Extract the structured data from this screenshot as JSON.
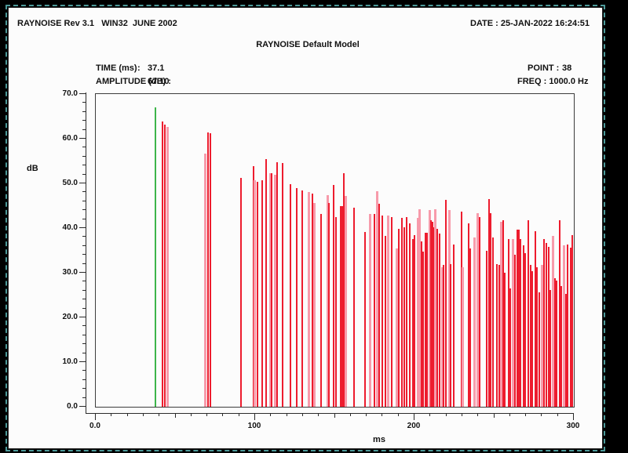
{
  "window": {
    "header_left": "RAYNOISE Rev 3.1   WIN32  JUNE 2002",
    "header_right": "DATE : 25-JAN-2022 16:24:51"
  },
  "plot_header": {
    "title": "RAYNOISE Default Model",
    "time_label": "TIME (ms)",
    "time_colon": ":",
    "time_value": "37.1",
    "amplitude_label": "AMPLITUDE (dB) :",
    "amplitude_value": "67.10",
    "point_label": "POINT :",
    "point_value": "38",
    "freq_label": "FREQ : 1000.0 Hz"
  },
  "chart_data": {
    "type": "bar",
    "title": "RAYNOISE Default Model",
    "xlabel": "ms",
    "ylabel": "dB",
    "xlim": [
      0,
      300
    ],
    "ylim": [
      0,
      70
    ],
    "grid": false,
    "legend": "none",
    "x_major_ticks": [
      0,
      100,
      200,
      300
    ],
    "x_tick_labels": [
      "0.0",
      "100",
      "200",
      "300"
    ],
    "x_minor_step": 10,
    "y_major_step": 10,
    "y_minor_step": 2,
    "y_tick_labels": [
      "0.0",
      "10.0",
      "20.0",
      "30.0",
      "40.0",
      "50.0",
      "60.0",
      "70.0"
    ],
    "cursor": {
      "time_ms": 37.1,
      "amplitude_db": 67.1
    },
    "colors": {
      "impulse": "#ed1c2e",
      "impulse_light": "#f79bab",
      "cursor": "#3db54a",
      "axis": "#2a2a2a"
    },
    "impulses": [
      [
        41.3,
        63.9,
        0
      ],
      [
        42.8,
        63.2,
        0
      ],
      [
        44.3,
        62.6,
        1
      ],
      [
        67.9,
        56.7,
        1
      ],
      [
        69.8,
        61.4,
        0
      ],
      [
        71.2,
        61.2,
        0
      ],
      [
        90.6,
        51.2,
        0
      ],
      [
        98.4,
        53.9,
        0
      ],
      [
        99.2,
        50.7,
        1
      ],
      [
        101.2,
        50.4,
        0
      ],
      [
        104.0,
        50.7,
        0
      ],
      [
        106.2,
        55.4,
        0
      ],
      [
        108.9,
        52.2,
        1
      ],
      [
        109.9,
        52.3,
        0
      ],
      [
        111.6,
        52.0,
        1
      ],
      [
        113.5,
        54.8,
        0
      ],
      [
        116.8,
        54.5,
        0
      ],
      [
        121.7,
        49.8,
        0
      ],
      [
        125.5,
        48.9,
        0
      ],
      [
        129.1,
        48.4,
        0
      ],
      [
        133.2,
        48.1,
        1
      ],
      [
        135.7,
        47.8,
        0
      ],
      [
        136.6,
        45.7,
        1
      ],
      [
        141.0,
        43.1,
        0
      ],
      [
        144.7,
        47.3,
        1
      ],
      [
        145.6,
        45.7,
        0
      ],
      [
        148.8,
        49.6,
        0
      ],
      [
        150.2,
        42.5,
        0
      ],
      [
        153.4,
        44.9,
        0
      ],
      [
        154.4,
        44.9,
        0
      ],
      [
        155.2,
        52.2,
        0
      ],
      [
        156.3,
        47.2,
        1
      ],
      [
        161.6,
        44.6,
        0
      ],
      [
        168.3,
        39.1,
        0
      ],
      [
        171.5,
        43.2,
        1
      ],
      [
        174.3,
        43.1,
        0
      ],
      [
        176.0,
        48.3,
        1
      ],
      [
        177.2,
        45.4,
        0
      ],
      [
        179.2,
        42.8,
        0
      ],
      [
        181.3,
        38.2,
        0
      ],
      [
        182.8,
        42.8,
        1
      ],
      [
        185.0,
        42.5,
        0
      ],
      [
        188.2,
        35.5,
        1
      ],
      [
        189.9,
        39.9,
        0
      ],
      [
        191.8,
        42.2,
        0
      ],
      [
        193.1,
        40.2,
        0
      ],
      [
        194.8,
        42.5,
        0
      ],
      [
        196.6,
        41.0,
        0
      ],
      [
        198.4,
        37.6,
        0
      ],
      [
        199.7,
        38.4,
        0
      ],
      [
        201.3,
        42.2,
        1
      ],
      [
        202.7,
        44.3,
        1
      ],
      [
        203.8,
        37.0,
        0
      ],
      [
        205.0,
        34.7,
        0
      ],
      [
        206.3,
        39.0,
        0
      ],
      [
        207.5,
        39.0,
        0
      ],
      [
        208.8,
        44.0,
        1
      ],
      [
        209.9,
        41.7,
        0
      ],
      [
        210.9,
        41.4,
        0
      ],
      [
        211.6,
        40.2,
        0
      ],
      [
        212.5,
        44.3,
        1
      ],
      [
        213.7,
        39.9,
        0
      ],
      [
        215.3,
        38.7,
        0
      ],
      [
        216.6,
        31.2,
        1
      ],
      [
        217.8,
        31.7,
        0
      ],
      [
        219.1,
        46.3,
        0
      ],
      [
        221.1,
        44.0,
        1
      ],
      [
        222.4,
        32.0,
        0
      ],
      [
        223.9,
        36.4,
        0
      ],
      [
        228.9,
        43.7,
        0
      ],
      [
        229.8,
        31.2,
        1
      ],
      [
        233.4,
        41.1,
        0
      ],
      [
        234.7,
        35.5,
        0
      ],
      [
        236.7,
        37.9,
        1
      ],
      [
        239.1,
        43.4,
        1
      ],
      [
        240.4,
        42.5,
        0
      ],
      [
        244.8,
        34.9,
        0
      ],
      [
        246.2,
        46.5,
        0
      ],
      [
        247.3,
        43.4,
        0
      ],
      [
        249.0,
        37.9,
        0
      ],
      [
        251.1,
        32.0,
        0
      ],
      [
        252.6,
        31.7,
        0
      ],
      [
        253.9,
        41.4,
        1
      ],
      [
        255.2,
        41.7,
        0
      ],
      [
        256.4,
        30.0,
        0
      ],
      [
        258.5,
        37.6,
        0
      ],
      [
        259.6,
        26.5,
        0
      ],
      [
        261.3,
        37.6,
        1
      ],
      [
        262.4,
        34.1,
        0
      ],
      [
        264.0,
        39.6,
        0
      ],
      [
        265.0,
        39.6,
        0
      ],
      [
        265.9,
        37.6,
        0
      ],
      [
        267.8,
        36.1,
        0
      ],
      [
        269.0,
        34.4,
        0
      ],
      [
        270.7,
        41.7,
        0
      ],
      [
        272.3,
        31.7,
        0
      ],
      [
        273.6,
        30.3,
        0
      ],
      [
        275.2,
        39.3,
        0
      ],
      [
        276.6,
        31.2,
        0
      ],
      [
        277.7,
        25.6,
        0
      ],
      [
        279.3,
        31.7,
        1
      ],
      [
        281.0,
        37.6,
        0
      ],
      [
        282.1,
        36.7,
        0
      ],
      [
        283.5,
        35.8,
        0
      ],
      [
        284.8,
        26.2,
        0
      ],
      [
        286.2,
        38.2,
        1
      ],
      [
        287.6,
        28.8,
        0
      ],
      [
        288.9,
        28.2,
        0
      ],
      [
        290.4,
        41.7,
        0
      ],
      [
        291.7,
        27.1,
        0
      ],
      [
        293.3,
        36.1,
        1
      ],
      [
        294.5,
        25.3,
        0
      ],
      [
        295.8,
        36.4,
        0
      ],
      [
        297.4,
        35.6,
        0
      ],
      [
        298.5,
        38.4,
        0
      ]
    ]
  }
}
